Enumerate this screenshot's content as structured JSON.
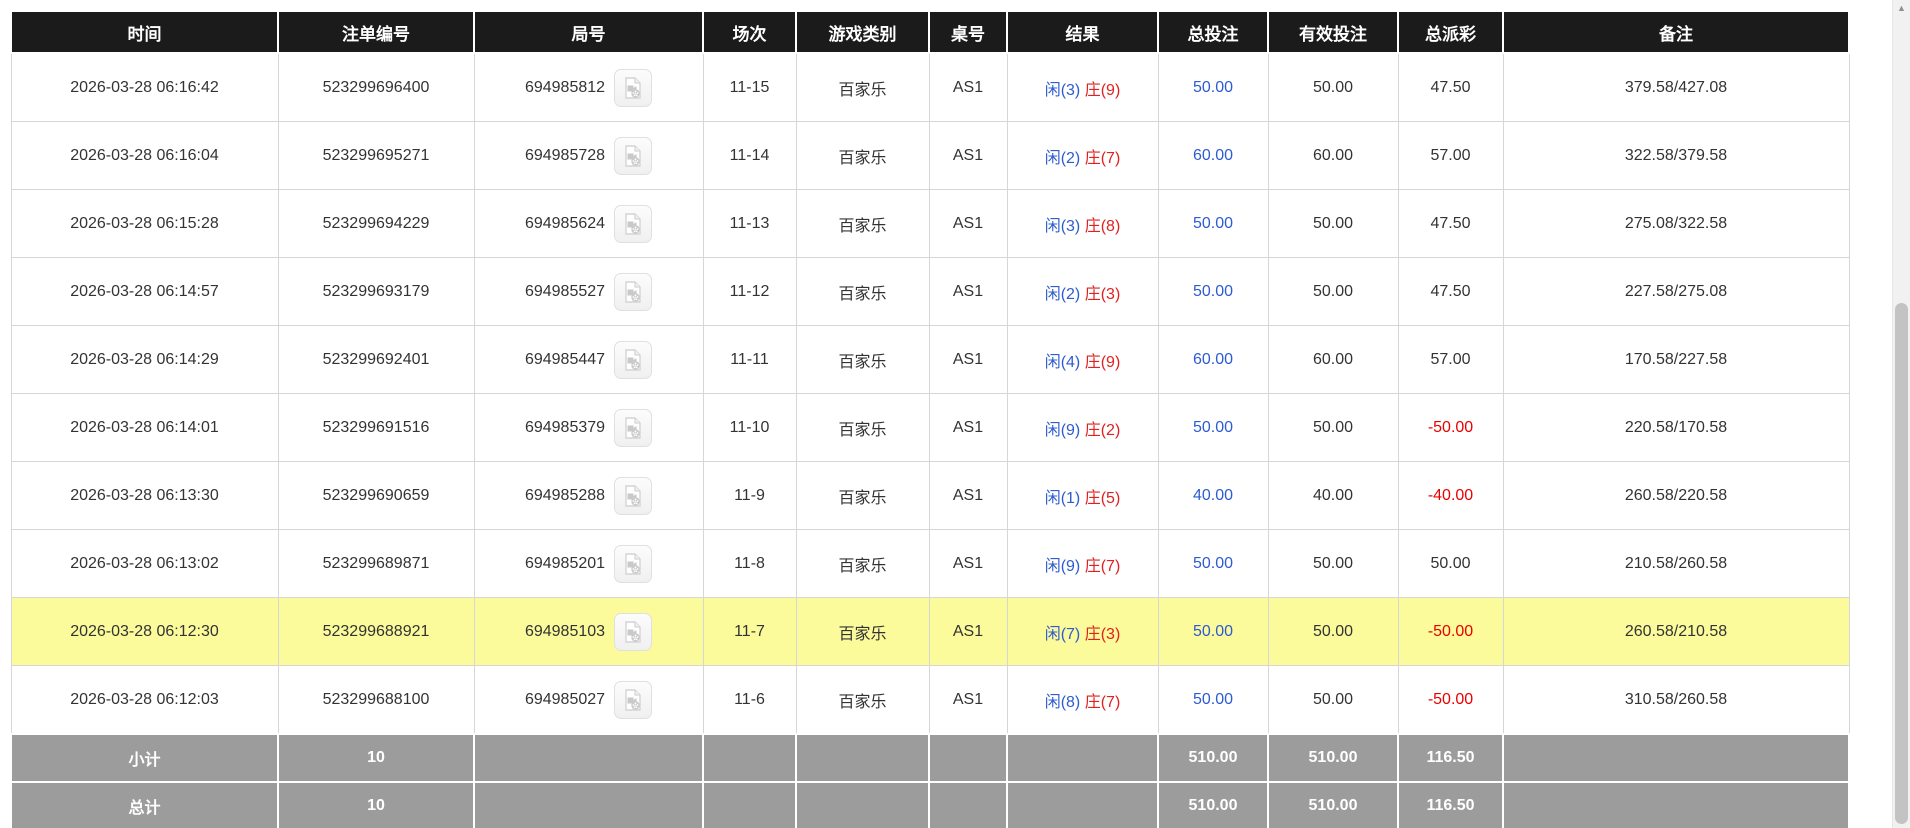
{
  "colors": {
    "header_bg": "#1b1b1b",
    "header_text": "#ffffff",
    "row_text": "#333333",
    "grid_line": "#d6d6d6",
    "highlight_row_bg": "#fbfb9b",
    "footer_bg": "#9c9c9c",
    "footer_text": "#ffffff",
    "player_blue": "#2d5bd1",
    "banker_red": "#e01f1f",
    "amount_blue": "#2d5bd1",
    "negative_red": "#ea0000"
  },
  "icons": {
    "video_button": "video-file-icon",
    "scrollbar_up_arrow": "▲"
  },
  "table": {
    "columns": [
      {
        "key": "time",
        "label": "时间"
      },
      {
        "key": "bet-id",
        "label": "注单编号"
      },
      {
        "key": "round-id",
        "label": "局号"
      },
      {
        "key": "session",
        "label": "场次"
      },
      {
        "key": "game-type",
        "label": "游戏类别"
      },
      {
        "key": "table-id",
        "label": "桌号"
      },
      {
        "key": "result",
        "label": "结果"
      },
      {
        "key": "total-bet",
        "label": "总投注"
      },
      {
        "key": "valid-bet",
        "label": "有效投注"
      },
      {
        "key": "payout",
        "label": "总派彩"
      },
      {
        "key": "remark",
        "label": "备注"
      }
    ],
    "rows": [
      {
        "time": "2026-03-28 06:16:42",
        "bet_id": "523299696400",
        "round_id": "694985812",
        "session": "11-15",
        "game_type": "百家乐",
        "table_id": "AS1",
        "result_player": "闲(3)",
        "result_banker": "庄(9)",
        "total_bet": "50.00",
        "valid_bet": "50.00",
        "payout": "47.50",
        "remark": "379.58/427.08",
        "highlighted": false
      },
      {
        "time": "2026-03-28 06:16:04",
        "bet_id": "523299695271",
        "round_id": "694985728",
        "session": "11-14",
        "game_type": "百家乐",
        "table_id": "AS1",
        "result_player": "闲(2)",
        "result_banker": "庄(7)",
        "total_bet": "60.00",
        "valid_bet": "60.00",
        "payout": "57.00",
        "remark": "322.58/379.58",
        "highlighted": false
      },
      {
        "time": "2026-03-28 06:15:28",
        "bet_id": "523299694229",
        "round_id": "694985624",
        "session": "11-13",
        "game_type": "百家乐",
        "table_id": "AS1",
        "result_player": "闲(3)",
        "result_banker": "庄(8)",
        "total_bet": "50.00",
        "valid_bet": "50.00",
        "payout": "47.50",
        "remark": "275.08/322.58",
        "highlighted": false
      },
      {
        "time": "2026-03-28 06:14:57",
        "bet_id": "523299693179",
        "round_id": "694985527",
        "session": "11-12",
        "game_type": "百家乐",
        "table_id": "AS1",
        "result_player": "闲(2)",
        "result_banker": "庄(3)",
        "total_bet": "50.00",
        "valid_bet": "50.00",
        "payout": "47.50",
        "remark": "227.58/275.08",
        "highlighted": false
      },
      {
        "time": "2026-03-28 06:14:29",
        "bet_id": "523299692401",
        "round_id": "694985447",
        "session": "11-11",
        "game_type": "百家乐",
        "table_id": "AS1",
        "result_player": "闲(4)",
        "result_banker": "庄(9)",
        "total_bet": "60.00",
        "valid_bet": "60.00",
        "payout": "57.00",
        "remark": "170.58/227.58",
        "highlighted": false
      },
      {
        "time": "2026-03-28 06:14:01",
        "bet_id": "523299691516",
        "round_id": "694985379",
        "session": "11-10",
        "game_type": "百家乐",
        "table_id": "AS1",
        "result_player": "闲(9)",
        "result_banker": "庄(2)",
        "total_bet": "50.00",
        "valid_bet": "50.00",
        "payout": "-50.00",
        "remark": "220.58/170.58",
        "highlighted": false
      },
      {
        "time": "2026-03-28 06:13:30",
        "bet_id": "523299690659",
        "round_id": "694985288",
        "session": "11-9",
        "game_type": "百家乐",
        "table_id": "AS1",
        "result_player": "闲(1)",
        "result_banker": "庄(5)",
        "total_bet": "40.00",
        "valid_bet": "40.00",
        "payout": "-40.00",
        "remark": "260.58/220.58",
        "highlighted": false
      },
      {
        "time": "2026-03-28 06:13:02",
        "bet_id": "523299689871",
        "round_id": "694985201",
        "session": "11-8",
        "game_type": "百家乐",
        "table_id": "AS1",
        "result_player": "闲(9)",
        "result_banker": "庄(7)",
        "total_bet": "50.00",
        "valid_bet": "50.00",
        "payout": "50.00",
        "remark": "210.58/260.58",
        "highlighted": false
      },
      {
        "time": "2026-03-28 06:12:30",
        "bet_id": "523299688921",
        "round_id": "694985103",
        "session": "11-7",
        "game_type": "百家乐",
        "table_id": "AS1",
        "result_player": "闲(7)",
        "result_banker": "庄(3)",
        "total_bet": "50.00",
        "valid_bet": "50.00",
        "payout": "-50.00",
        "remark": "260.58/210.58",
        "highlighted": true
      },
      {
        "time": "2026-03-28 06:12:03",
        "bet_id": "523299688100",
        "round_id": "694985027",
        "session": "11-6",
        "game_type": "百家乐",
        "table_id": "AS1",
        "result_player": "闲(8)",
        "result_banker": "庄(7)",
        "total_bet": "50.00",
        "valid_bet": "50.00",
        "payout": "-50.00",
        "remark": "310.58/260.58",
        "highlighted": false
      }
    ],
    "footer_rows": [
      {
        "label": "小计",
        "count": "10",
        "total_bet": "510.00",
        "valid_bet": "510.00",
        "payout": "116.50"
      },
      {
        "label": "总计",
        "count": "10",
        "total_bet": "510.00",
        "valid_bet": "510.00",
        "payout": "116.50"
      }
    ]
  }
}
